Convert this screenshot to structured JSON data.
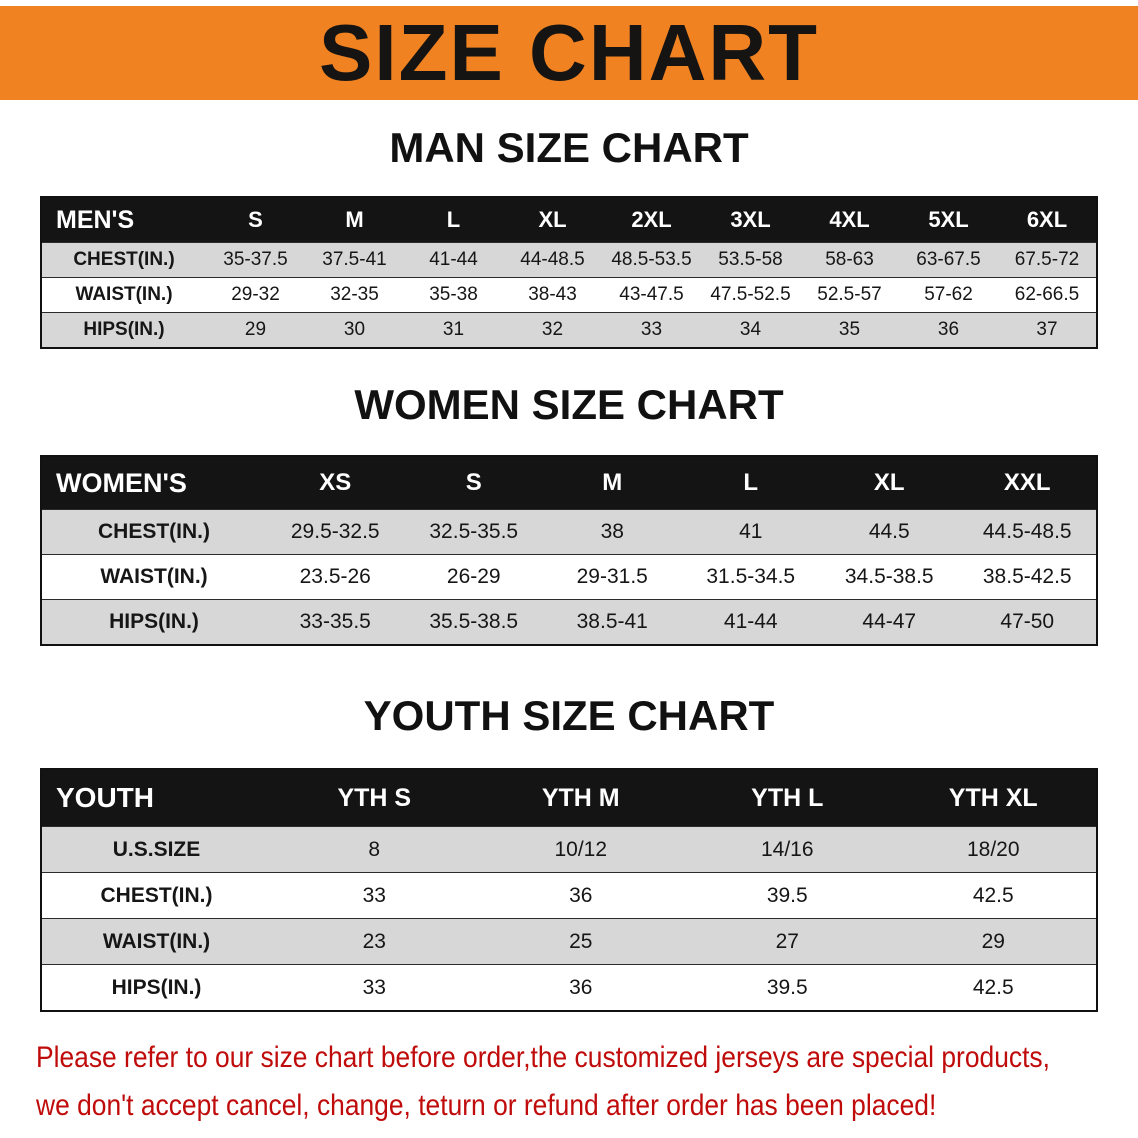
{
  "banner": {
    "title": "SIZE CHART"
  },
  "colors": {
    "banner-bg": "#f08222",
    "banner-text": "#161412",
    "table-header-bg": "#141414",
    "table-header-text": "#ffffff",
    "row-alt": "#d7d7d7",
    "row-base": "#ffffff",
    "disclaimer-text": "#c00b0b"
  },
  "sections": {
    "men": {
      "heading": "MAN SIZE CHART",
      "table": {
        "header": [
          "MEN'S",
          "S",
          "M",
          "L",
          "XL",
          "2XL",
          "3XL",
          "4XL",
          "5XL",
          "6XL"
        ],
        "rows": [
          {
            "label": "CHEST(IN.)",
            "values": [
              "35-37.5",
              "37.5-41",
              "41-44",
              "44-48.5",
              "48.5-53.5",
              "53.5-58",
              "58-63",
              "63-67.5",
              "67.5-72"
            ]
          },
          {
            "label": "WAIST(IN.)",
            "values": [
              "29-32",
              "32-35",
              "35-38",
              "38-43",
              "43-47.5",
              "47.5-52.5",
              "52.5-57",
              "57-62",
              "62-66.5"
            ]
          },
          {
            "label": "HIPS(IN.)",
            "values": [
              "29",
              "30",
              "31",
              "32",
              "33",
              "34",
              "35",
              "36",
              "37"
            ]
          }
        ]
      }
    },
    "women": {
      "heading": "WOMEN SIZE CHART",
      "table": {
        "header": [
          "WOMEN'S",
          "XS",
          "S",
          "M",
          "L",
          "XL",
          "XXL"
        ],
        "rows": [
          {
            "label": "CHEST(IN.)",
            "values": [
              "29.5-32.5",
              "32.5-35.5",
              "38",
              "41",
              "44.5",
              "44.5-48.5"
            ]
          },
          {
            "label": "WAIST(IN.)",
            "values": [
              "23.5-26",
              "26-29",
              "29-31.5",
              "31.5-34.5",
              "34.5-38.5",
              "38.5-42.5"
            ]
          },
          {
            "label": "HIPS(IN.)",
            "values": [
              "33-35.5",
              "35.5-38.5",
              "38.5-41",
              "41-44",
              "44-47",
              "47-50"
            ]
          }
        ]
      }
    },
    "youth": {
      "heading": "YOUTH SIZE CHART",
      "table": {
        "header": [
          "YOUTH",
          "YTH S",
          "YTH M",
          "YTH L",
          "YTH XL"
        ],
        "rows": [
          {
            "label": "U.S.SIZE",
            "values": [
              "8",
              "10/12",
              "14/16",
              "18/20"
            ]
          },
          {
            "label": "CHEST(IN.)",
            "values": [
              "33",
              "36",
              "39.5",
              "42.5"
            ]
          },
          {
            "label": "WAIST(IN.)",
            "values": [
              "23",
              "25",
              "27",
              "29"
            ]
          },
          {
            "label": "HIPS(IN.)",
            "values": [
              "33",
              "36",
              "39.5",
              "42.5"
            ]
          }
        ]
      }
    }
  },
  "disclaimer": {
    "line1": "Please refer to our size chart before order,the customized jerseys are special products,",
    "line2": "we don't accept cancel, change, teturn or refund after order has been placed!"
  }
}
